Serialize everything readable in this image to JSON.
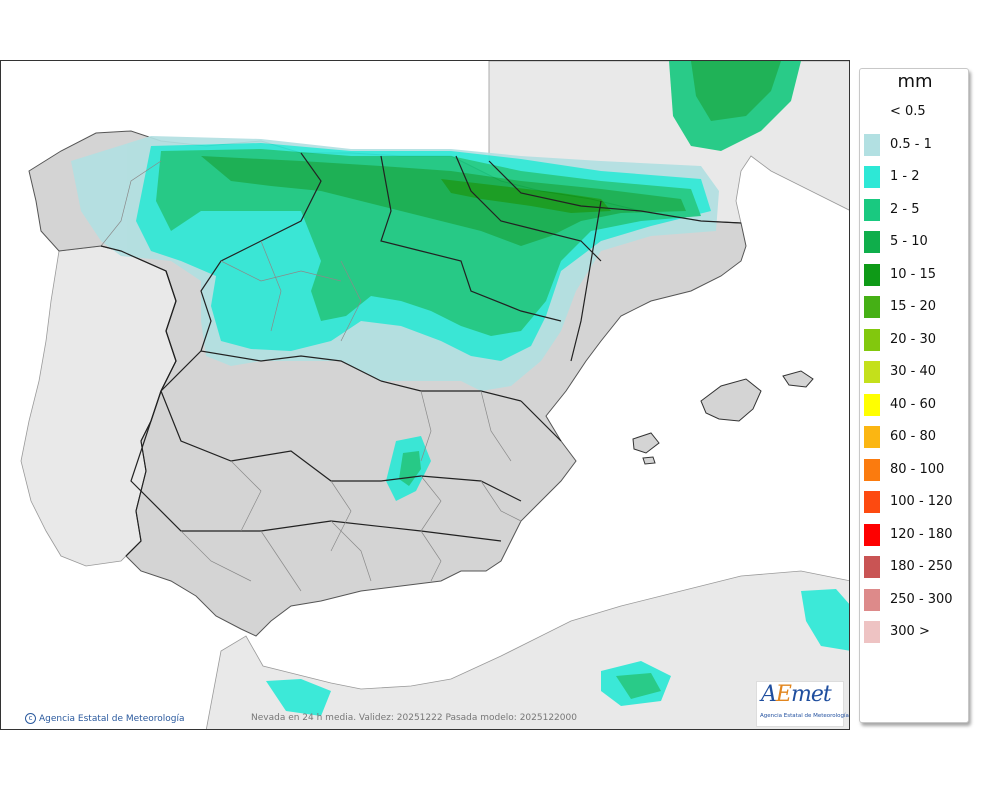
{
  "legend": {
    "unit": "mm",
    "items": [
      {
        "label": "< 0.5",
        "color": "#ffffff"
      },
      {
        "label": "0.5 - 1",
        "color": "#b2e0e2"
      },
      {
        "label": "1 - 2",
        "color": "#2de8d6"
      },
      {
        "label": "2 - 5",
        "color": "#19c980"
      },
      {
        "label": "5 - 10",
        "color": "#0fae4b"
      },
      {
        "label": "10 - 15",
        "color": "#0e9a17"
      },
      {
        "label": "15 - 20",
        "color": "#45b015"
      },
      {
        "label": "20 - 30",
        "color": "#82c80d"
      },
      {
        "label": "30 - 40",
        "color": "#c4e01b"
      },
      {
        "label": "40 - 60",
        "color": "#ffff00"
      },
      {
        "label": "60 - 80",
        "color": "#fbb612"
      },
      {
        "label": "80 - 100",
        "color": "#fb7b0e"
      },
      {
        "label": "100 - 120",
        "color": "#fd4a10"
      },
      {
        "label": "120 - 180",
        "color": "#fe0000"
      },
      {
        "label": "180 - 250",
        "color": "#c95454"
      },
      {
        "label": "250 - 300",
        "color": "#dd8a8a"
      },
      {
        "label": "300 >",
        "color": "#eec3c3"
      }
    ]
  },
  "map": {
    "credit": "Agencia Estatal de Meteorología",
    "credit_icon": "copyright-icon",
    "caption": "Nevada en 24 h media. Validez: 20251222 Pasada modelo: 2025122000",
    "logo_word_a": "A",
    "logo_word_b": "E",
    "logo_word_c": "met",
    "logo_sub": "Agencia Estatal de Meteorología",
    "colors": {
      "sea": "#ffffff",
      "land_spain": "#d4d4d4",
      "land_other": "#e9e9e9",
      "border": "#222222",
      "province": "#8a8a8a"
    }
  }
}
